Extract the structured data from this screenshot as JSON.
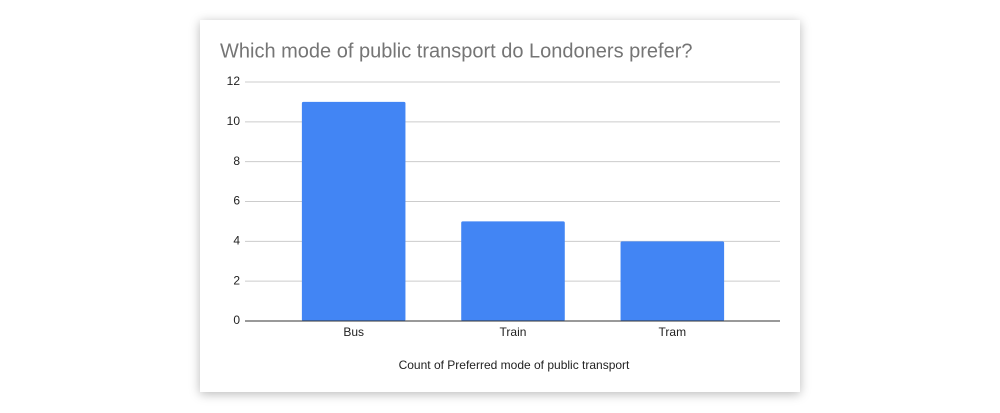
{
  "chart_data": {
    "type": "bar",
    "title": "Which mode of public transport do Londoners prefer?",
    "x_label": "Count of Preferred mode of public transport",
    "categories": [
      "Bus",
      "Train",
      "Tram"
    ],
    "values": [
      11,
      5,
      4
    ],
    "color": "#4285f4",
    "ylim": [
      0,
      12
    ],
    "yticks": [
      0,
      2,
      4,
      6,
      8,
      10,
      12
    ],
    "grid": true
  }
}
